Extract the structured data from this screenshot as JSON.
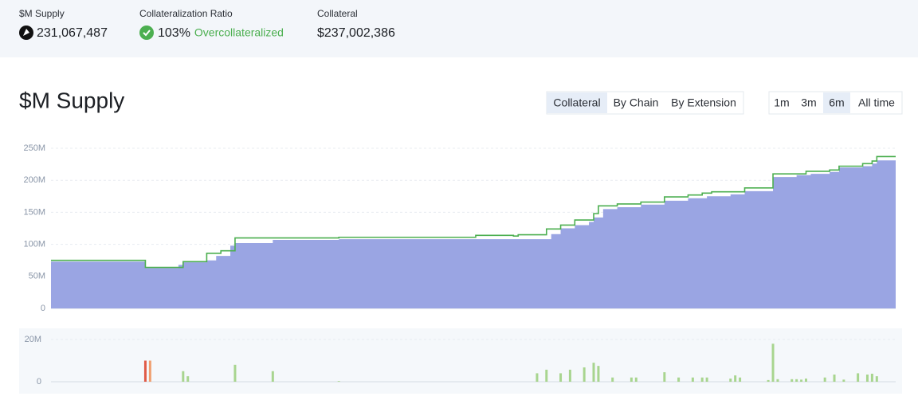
{
  "stats": [
    {
      "label": "$M Supply",
      "value": "231,067,487"
    },
    {
      "label": "Collateralization Ratio",
      "value": "103%",
      "note": "Overcollateralized"
    },
    {
      "label": "Collateral",
      "value": "$237,002,386"
    }
  ],
  "title": "$M Supply",
  "tabs": {
    "items": [
      "Collateral",
      "By Chain",
      "By Extension"
    ],
    "active": 0
  },
  "ranges": {
    "items": [
      "1m",
      "3m",
      "6m",
      "All time"
    ],
    "active": 2
  },
  "chart_data": [
    {
      "type": "area",
      "xlim": [
        0,
        179
      ],
      "ylim": [
        0,
        250000000
      ],
      "yticks": [
        0,
        {
          "value": 50000000,
          "label": "50M"
        },
        {
          "value": 100000000,
          "label": "100M"
        },
        {
          "value": 150000000,
          "label": "150M"
        },
        {
          "value": 200000000,
          "label": "200M"
        },
        {
          "value": 250000000,
          "label": "250M"
        }
      ],
      "grid": true,
      "series": [
        {
          "color": "#9aa5e3",
          "fill": true,
          "x": [
            0,
            20,
            27,
            28,
            33,
            35,
            38,
            39,
            47,
            61,
            106,
            108,
            111,
            114,
            115,
            117,
            120,
            125,
            130,
            135,
            139,
            144,
            147,
            153,
            158,
            161,
            165,
            167,
            172,
            174,
            175,
            179
          ],
          "values": [
            73000000,
            63000000,
            68000000,
            72000000,
            75000000,
            82000000,
            98000000,
            102000000,
            107000000,
            108000000,
            116000000,
            125000000,
            130000000,
            135000000,
            142000000,
            155000000,
            158000000,
            162000000,
            168000000,
            172000000,
            175000000,
            178000000,
            183000000,
            205000000,
            208000000,
            210000000,
            213000000,
            220000000,
            222000000,
            226000000,
            231000000,
            231000000
          ]
        },
        {
          "color": "#4caf50",
          "fill": false,
          "x": [
            0,
            20,
            28,
            33,
            36,
            39,
            61,
            90,
            98,
            99,
            105,
            108,
            111,
            115,
            116,
            120,
            125,
            130,
            135,
            138,
            140,
            147,
            153,
            160,
            165,
            167,
            172,
            174,
            175,
            179
          ],
          "values": [
            75000000,
            64000000,
            73000000,
            86000000,
            90000000,
            110000000,
            111000000,
            114000000,
            113000000,
            115000000,
            124000000,
            130000000,
            138000000,
            148000000,
            160000000,
            163000000,
            166000000,
            174000000,
            177000000,
            180000000,
            182000000,
            188000000,
            210000000,
            214000000,
            216000000,
            222000000,
            226000000,
            230000000,
            237000000,
            237000000
          ]
        }
      ]
    },
    {
      "type": "bar",
      "xlim": [
        0,
        179
      ],
      "ylim": [
        0,
        20000000
      ],
      "yticks": [
        0,
        {
          "value": 20000000,
          "label": "20M"
        }
      ],
      "grid": true,
      "x": [
        20,
        21,
        28,
        29,
        39,
        47,
        61,
        103,
        105,
        108,
        110,
        113,
        115,
        116,
        119,
        123,
        124,
        130,
        133,
        136,
        138,
        139,
        144,
        145,
        146,
        152,
        153,
        154,
        157,
        158,
        159,
        160,
        164,
        166,
        168,
        171,
        173,
        174,
        175
      ],
      "values": [
        10000000,
        10000000,
        5000000,
        2600000,
        8000000,
        5000000,
        300000,
        4000000,
        5700000,
        4000000,
        5700000,
        6800000,
        9000000,
        7500000,
        2000000,
        2000000,
        2000000,
        4500000,
        2000000,
        2000000,
        2000000,
        2000000,
        1500000,
        3000000,
        2000000,
        800000,
        18000000,
        1200000,
        1200000,
        1200000,
        1000000,
        1500000,
        2000000,
        3400000,
        1000000,
        4000000,
        3400000,
        3800000,
        2600000
      ],
      "colors": [
        "#e05a47",
        "#f0a070",
        "#a8d58f",
        "#a8d58f",
        "#a8d58f",
        "#a8d58f",
        "#a8d58f",
        "#a8d58f",
        "#a8d58f",
        "#a8d58f",
        "#a8d58f",
        "#a8d58f",
        "#a8d58f",
        "#a8d58f",
        "#a8d58f",
        "#a8d58f",
        "#a8d58f",
        "#a8d58f",
        "#a8d58f",
        "#a8d58f",
        "#a8d58f",
        "#a8d58f",
        "#a8d58f",
        "#a8d58f",
        "#a8d58f",
        "#a8d58f",
        "#a8d58f",
        "#a8d58f",
        "#a8d58f",
        "#a8d58f",
        "#a8d58f",
        "#a8d58f",
        "#a8d58f",
        "#a8d58f",
        "#a8d58f",
        "#a8d58f",
        "#a8d58f",
        "#a8d58f",
        "#a8d58f"
      ]
    }
  ]
}
